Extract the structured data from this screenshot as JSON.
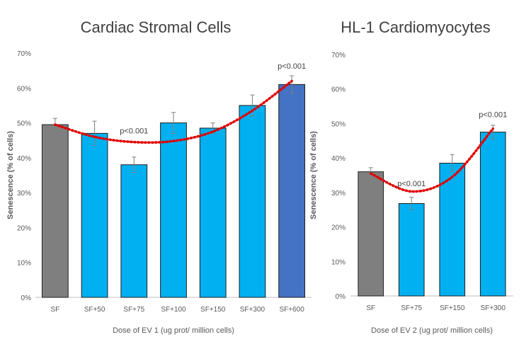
{
  "chart_data": [
    {
      "type": "bar",
      "title": "Cardiac Stromal Cells",
      "xlabel": "Dose of EV 1 (ug prot/ million cells)",
      "ylabel": "Senescence (% of cells)",
      "ylim": [
        0,
        70
      ],
      "yticks": [
        0,
        10,
        20,
        30,
        40,
        50,
        60,
        70
      ],
      "ytick_labels": [
        "0%",
        "10%",
        "20%",
        "30%",
        "40%",
        "50%",
        "60%",
        "70%"
      ],
      "categories": [
        "SF",
        "SF+50",
        "SF+75",
        "SF+100",
        "SF+150",
        "SF+300",
        "SF+600"
      ],
      "values": [
        49.5,
        47,
        38,
        50,
        48.5,
        55,
        61
      ],
      "errors": [
        1.8,
        3.5,
        2.2,
        3,
        1.5,
        3,
        2.5
      ],
      "bar_colors": [
        "#7f7f7f",
        "#00b0f0",
        "#00b0f0",
        "#00b0f0",
        "#00b0f0",
        "#00b0f0",
        "#4472c4"
      ],
      "trend": {
        "type": "polynomial",
        "color": "#e00000",
        "points": [
          49.5,
          46,
          44.5,
          44.8,
          47.5,
          53.5,
          62
        ]
      },
      "annotations": [
        {
          "category_index": 2,
          "value": 47,
          "text": "p<0.001"
        },
        {
          "category_index": 6,
          "value": 65.5,
          "text": "p<0.001"
        }
      ],
      "grid": false
    },
    {
      "type": "bar",
      "title": "HL-1 Cardiomyocytes",
      "xlabel": "Dose of EV 2 (ug prot/ million cells)",
      "ylabel": "Senescence (% of cells)",
      "ylim": [
        0,
        70
      ],
      "yticks": [
        0,
        10,
        20,
        30,
        40,
        50,
        60,
        70
      ],
      "ytick_labels": [
        "0%",
        "10%",
        "20%",
        "30%",
        "40%",
        "50%",
        "60%",
        "70%"
      ],
      "categories": [
        "SF",
        "SF+75",
        "SF+150",
        "SF+300"
      ],
      "values": [
        36,
        26.8,
        38.5,
        47.5
      ],
      "errors": [
        1.2,
        1.8,
        2.5,
        2
      ],
      "bar_colors": [
        "#7f7f7f",
        "#00b0f0",
        "#00b0f0",
        "#00b0f0"
      ],
      "trend": {
        "type": "polynomial",
        "color": "#e00000",
        "points": [
          35.5,
          30.3,
          34.5,
          48.5
        ]
      },
      "annotations": [
        {
          "category_index": 1,
          "value": 31.8,
          "text": "p<0.001"
        },
        {
          "category_index": 3,
          "value": 51.8,
          "text": "p<0.001"
        }
      ],
      "grid": false
    }
  ]
}
